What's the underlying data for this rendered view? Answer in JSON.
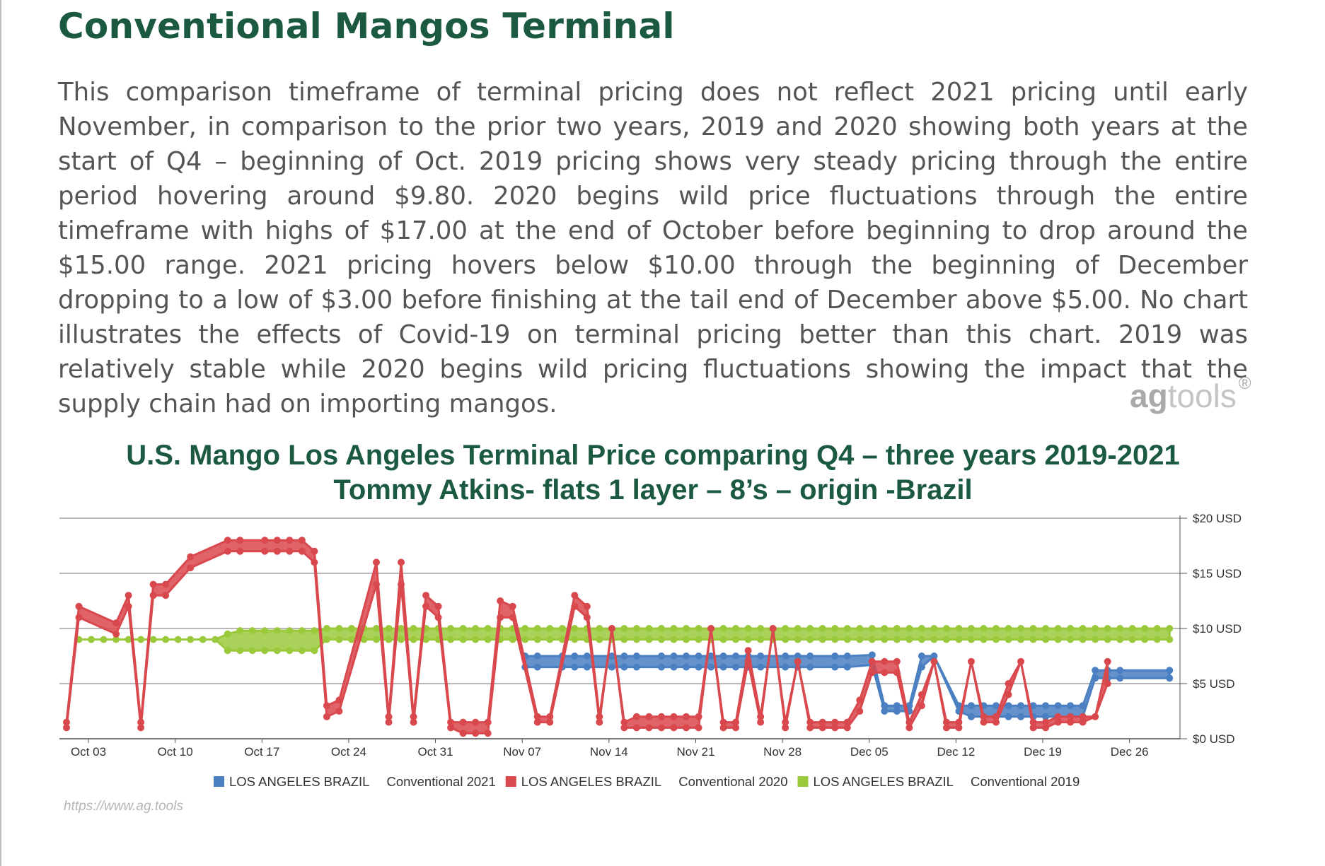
{
  "page": {
    "heading": "Conventional Mangos Terminal",
    "paragraph": "This comparison timeframe of terminal pricing does not reflect 2021 pricing until early November, in comparison to the prior two years, 2019 and 2020 showing both years at the start of Q4 – beginning of Oct. 2019 pricing shows very steady pricing through the entire period hovering around $9.80. 2020 begins wild price fluctuations through the entire timeframe with highs of $17.00 at the end of October before beginning to drop around the $15.00 range. 2021 pricing hovers below $10.00 through the beginning of December dropping to a low of $3.00 before finishing at the tail end of December above $5.00. No chart illustrates the effects of Covid-19 on terminal pricing better than this chart.  2019 was relatively stable while 2020 begins wild pricing fluctuations showing the impact that the supply chain had on importing mangos.",
    "brand_ag": "ag",
    "brand_tools": "tools",
    "brand_reg": "®",
    "watermark": "https://www.ag.tools"
  },
  "chart_data": {
    "type": "line",
    "title": "U.S. Mango Los Angeles Terminal Price comparing Q4 – three years 2019-2021",
    "subtitle": "Tommy Atkins- flats 1 layer – 8’s – origin -Brazil",
    "x_ticks": [
      "Oct 03",
      "Oct 10",
      "Oct 17",
      "Oct 24",
      "Oct 31",
      "Nov 07",
      "Nov 14",
      "Nov 21",
      "Nov 28",
      "Dec 05",
      "Dec 12",
      "Dec 19",
      "Dec 26"
    ],
    "y_ticks": [
      "$0 USD",
      "$5 USD",
      "$10 USD",
      "$15 USD",
      "$20 USD"
    ],
    "ylim": [
      0,
      20
    ],
    "y_axis_side": "right",
    "grid": true,
    "legend_position": "bottom",
    "legend_series_colors": [
      "#4a7fc1",
      "#d9484d",
      "#9bc93c"
    ],
    "series": [
      {
        "name": "LOS ANGELES BRAZIL",
        "tag": "Conventional 2021",
        "color": "#4a7fc1",
        "points": [
          [
            37,
            6.5,
            7.5
          ],
          [
            38,
            6.5,
            7.5
          ],
          [
            40,
            6.5,
            7.5
          ],
          [
            41,
            6.5,
            7.5
          ],
          [
            42,
            6.5,
            7.5
          ],
          [
            44,
            6.5,
            7.5
          ],
          [
            45,
            6.5,
            7.5
          ],
          [
            46,
            6.5,
            7.5
          ],
          [
            48,
            6.5,
            7.5
          ],
          [
            49,
            6.5,
            7.5
          ],
          [
            50,
            6.5,
            7.5
          ],
          [
            51,
            6.5,
            7.5
          ],
          [
            52,
            6.5,
            7.5
          ],
          [
            53,
            6.5,
            7.5
          ],
          [
            54,
            6.5,
            7.5
          ],
          [
            55,
            6.5,
            7.5
          ],
          [
            56,
            6.5,
            7.5
          ],
          [
            58,
            6.5,
            7.5
          ],
          [
            59,
            6.5,
            7.5
          ],
          [
            60,
            6.5,
            7.5
          ],
          [
            62,
            6.5,
            7.5
          ],
          [
            63,
            6.5,
            7.5
          ],
          [
            65,
            6.7,
            7.6
          ],
          [
            66,
            2.5,
            3.0
          ],
          [
            67,
            2.5,
            3.0
          ],
          [
            68,
            2.5,
            3.0
          ],
          [
            69,
            6.5,
            7.5
          ],
          [
            70,
            7.5,
            7.5
          ],
          [
            72,
            2.5,
            3.0
          ],
          [
            73,
            2.0,
            3.0
          ],
          [
            74,
            2.0,
            3.0
          ],
          [
            75,
            2.0,
            3.0
          ],
          [
            76,
            2.0,
            3.0
          ],
          [
            77,
            2.0,
            3.0
          ],
          [
            78,
            2.0,
            3.0
          ],
          [
            79,
            2.0,
            3.0
          ],
          [
            80,
            2.0,
            3.0
          ],
          [
            81,
            2.0,
            3.0
          ],
          [
            82,
            2.0,
            3.0
          ],
          [
            83,
            5.5,
            6.2
          ],
          [
            84,
            5.5,
            6.2
          ],
          [
            85,
            5.5,
            6.2
          ],
          [
            89,
            5.5,
            6.2
          ]
        ]
      },
      {
        "name": "LOS ANGELES BRAZIL",
        "tag": "Conventional 2020",
        "color": "#d9484d",
        "points": [
          [
            0,
            1,
            1.5
          ],
          [
            1,
            11,
            12
          ],
          [
            4,
            9.5,
            10.5
          ],
          [
            5,
            12,
            13
          ],
          [
            6,
            1,
            1.5
          ],
          [
            7,
            13,
            14
          ],
          [
            8,
            13,
            14
          ],
          [
            10,
            15.5,
            16.5
          ],
          [
            13,
            17,
            18
          ],
          [
            14,
            17,
            18
          ],
          [
            16,
            17,
            18
          ],
          [
            17,
            17,
            18
          ],
          [
            18,
            17,
            18
          ],
          [
            19,
            17,
            18
          ],
          [
            20,
            16,
            17
          ],
          [
            21,
            2,
            3
          ],
          [
            22,
            2.5,
            3.5
          ],
          [
            25,
            14,
            16
          ],
          [
            26,
            1.5,
            2
          ],
          [
            27,
            14,
            16
          ],
          [
            28,
            1.5,
            2
          ],
          [
            29,
            12,
            13
          ],
          [
            30,
            11,
            12
          ],
          [
            31,
            1,
            1.5
          ],
          [
            32,
            0.5,
            1.5
          ],
          [
            33,
            0.5,
            1.5
          ],
          [
            34,
            0.5,
            1.5
          ],
          [
            35,
            11,
            12.5
          ],
          [
            36,
            11,
            12
          ],
          [
            38,
            1.5,
            2
          ],
          [
            39,
            1.5,
            2
          ],
          [
            41,
            12,
            13
          ],
          [
            42,
            11,
            12
          ],
          [
            43,
            1.5,
            2
          ],
          [
            44,
            10,
            10
          ],
          [
            45,
            1,
            1.5
          ],
          [
            46,
            1,
            2
          ],
          [
            47,
            1,
            2
          ],
          [
            48,
            1,
            2
          ],
          [
            49,
            1,
            2
          ],
          [
            50,
            1,
            2
          ],
          [
            51,
            1,
            2
          ],
          [
            52,
            10,
            10
          ],
          [
            53,
            1,
            1.5
          ],
          [
            54,
            1,
            1.5
          ],
          [
            55,
            7,
            8
          ],
          [
            56,
            1.5,
            2
          ],
          [
            57,
            10,
            10
          ],
          [
            58,
            1,
            1.5
          ],
          [
            59,
            7,
            7
          ],
          [
            60,
            1,
            1.5
          ],
          [
            61,
            1,
            1.5
          ],
          [
            62,
            1,
            1.5
          ],
          [
            63,
            1,
            1.5
          ],
          [
            64,
            2.5,
            3.5
          ],
          [
            65,
            6,
            7
          ],
          [
            66,
            6,
            7
          ],
          [
            67,
            6,
            7
          ],
          [
            68,
            1,
            1.5
          ],
          [
            69,
            3,
            4
          ],
          [
            70,
            7,
            7
          ],
          [
            71,
            1,
            1.5
          ],
          [
            72,
            1,
            1.5
          ],
          [
            73,
            7,
            7
          ],
          [
            74,
            1.5,
            2
          ],
          [
            75,
            1.5,
            2
          ],
          [
            76,
            4,
            5
          ],
          [
            77,
            7,
            7
          ],
          [
            78,
            1,
            1.5
          ],
          [
            79,
            1,
            1.5
          ],
          [
            80,
            1.5,
            2
          ],
          [
            81,
            1.5,
            2
          ],
          [
            82,
            1.5,
            2
          ],
          [
            83,
            2,
            2
          ],
          [
            84,
            5,
            7
          ]
        ]
      },
      {
        "name": "LOS ANGELES BRAZIL",
        "tag": "Conventional 2019",
        "color": "#9bc93c",
        "points": [
          [
            1,
            9,
            9
          ],
          [
            2,
            9,
            9
          ],
          [
            3,
            9,
            9
          ],
          [
            4,
            9,
            9
          ],
          [
            5,
            9,
            9
          ],
          [
            6,
            9,
            9
          ],
          [
            7,
            9,
            9
          ],
          [
            8,
            9,
            9
          ],
          [
            9,
            9,
            9
          ],
          [
            10,
            9,
            9
          ],
          [
            11,
            9,
            9
          ],
          [
            12,
            9,
            9
          ],
          [
            13,
            8,
            9.5
          ],
          [
            14,
            8,
            9.8
          ],
          [
            15,
            8,
            9.8
          ],
          [
            16,
            8,
            9.8
          ],
          [
            17,
            8,
            9.8
          ],
          [
            18,
            8,
            9.8
          ],
          [
            19,
            8,
            9.8
          ],
          [
            20,
            8,
            9.8
          ],
          [
            21,
            9,
            10
          ],
          [
            22,
            9,
            10
          ],
          [
            23,
            9,
            10
          ],
          [
            24,
            9,
            10
          ],
          [
            25,
            9,
            10
          ],
          [
            26,
            9,
            10
          ],
          [
            27,
            9,
            10
          ],
          [
            28,
            9,
            10
          ],
          [
            29,
            9,
            10
          ],
          [
            30,
            9,
            10
          ],
          [
            31,
            9,
            10
          ],
          [
            32,
            9,
            10
          ],
          [
            33,
            9,
            10
          ],
          [
            34,
            9,
            10
          ],
          [
            35,
            9,
            10
          ],
          [
            36,
            9,
            10
          ],
          [
            37,
            9,
            10
          ],
          [
            38,
            9,
            10
          ],
          [
            39,
            9,
            10
          ],
          [
            40,
            9,
            10
          ],
          [
            41,
            9,
            10
          ],
          [
            42,
            9,
            10
          ],
          [
            43,
            9,
            10
          ],
          [
            44,
            9,
            10
          ],
          [
            45,
            9,
            10
          ],
          [
            46,
            9,
            10
          ],
          [
            47,
            9,
            10
          ],
          [
            48,
            9,
            10
          ],
          [
            49,
            9,
            10
          ],
          [
            50,
            9,
            10
          ],
          [
            51,
            9,
            10
          ],
          [
            52,
            9,
            10
          ],
          [
            53,
            9,
            10
          ],
          [
            54,
            9,
            10
          ],
          [
            55,
            9,
            10
          ],
          [
            56,
            9,
            10
          ],
          [
            57,
            9,
            10
          ],
          [
            58,
            9,
            10
          ],
          [
            59,
            9,
            10
          ],
          [
            60,
            9,
            10
          ],
          [
            61,
            9,
            10
          ],
          [
            62,
            9,
            10
          ],
          [
            63,
            9,
            10
          ],
          [
            64,
            9,
            10
          ],
          [
            65,
            9,
            10
          ],
          [
            66,
            9,
            10
          ],
          [
            67,
            9,
            10
          ],
          [
            68,
            9,
            10
          ],
          [
            69,
            9,
            10
          ],
          [
            70,
            9,
            10
          ],
          [
            71,
            9,
            10
          ],
          [
            72,
            9,
            10
          ],
          [
            73,
            9,
            10
          ],
          [
            74,
            9,
            10
          ],
          [
            75,
            9,
            10
          ],
          [
            76,
            9,
            10
          ],
          [
            77,
            9,
            10
          ],
          [
            78,
            9,
            10
          ],
          [
            79,
            9,
            10
          ],
          [
            80,
            9,
            10
          ],
          [
            81,
            9,
            10
          ],
          [
            82,
            9,
            10
          ],
          [
            83,
            9,
            10
          ],
          [
            84,
            9,
            10
          ],
          [
            85,
            9,
            10
          ],
          [
            86,
            9,
            10
          ],
          [
            87,
            9,
            10
          ],
          [
            88,
            9,
            10
          ],
          [
            89,
            9,
            10
          ]
        ]
      }
    ]
  }
}
